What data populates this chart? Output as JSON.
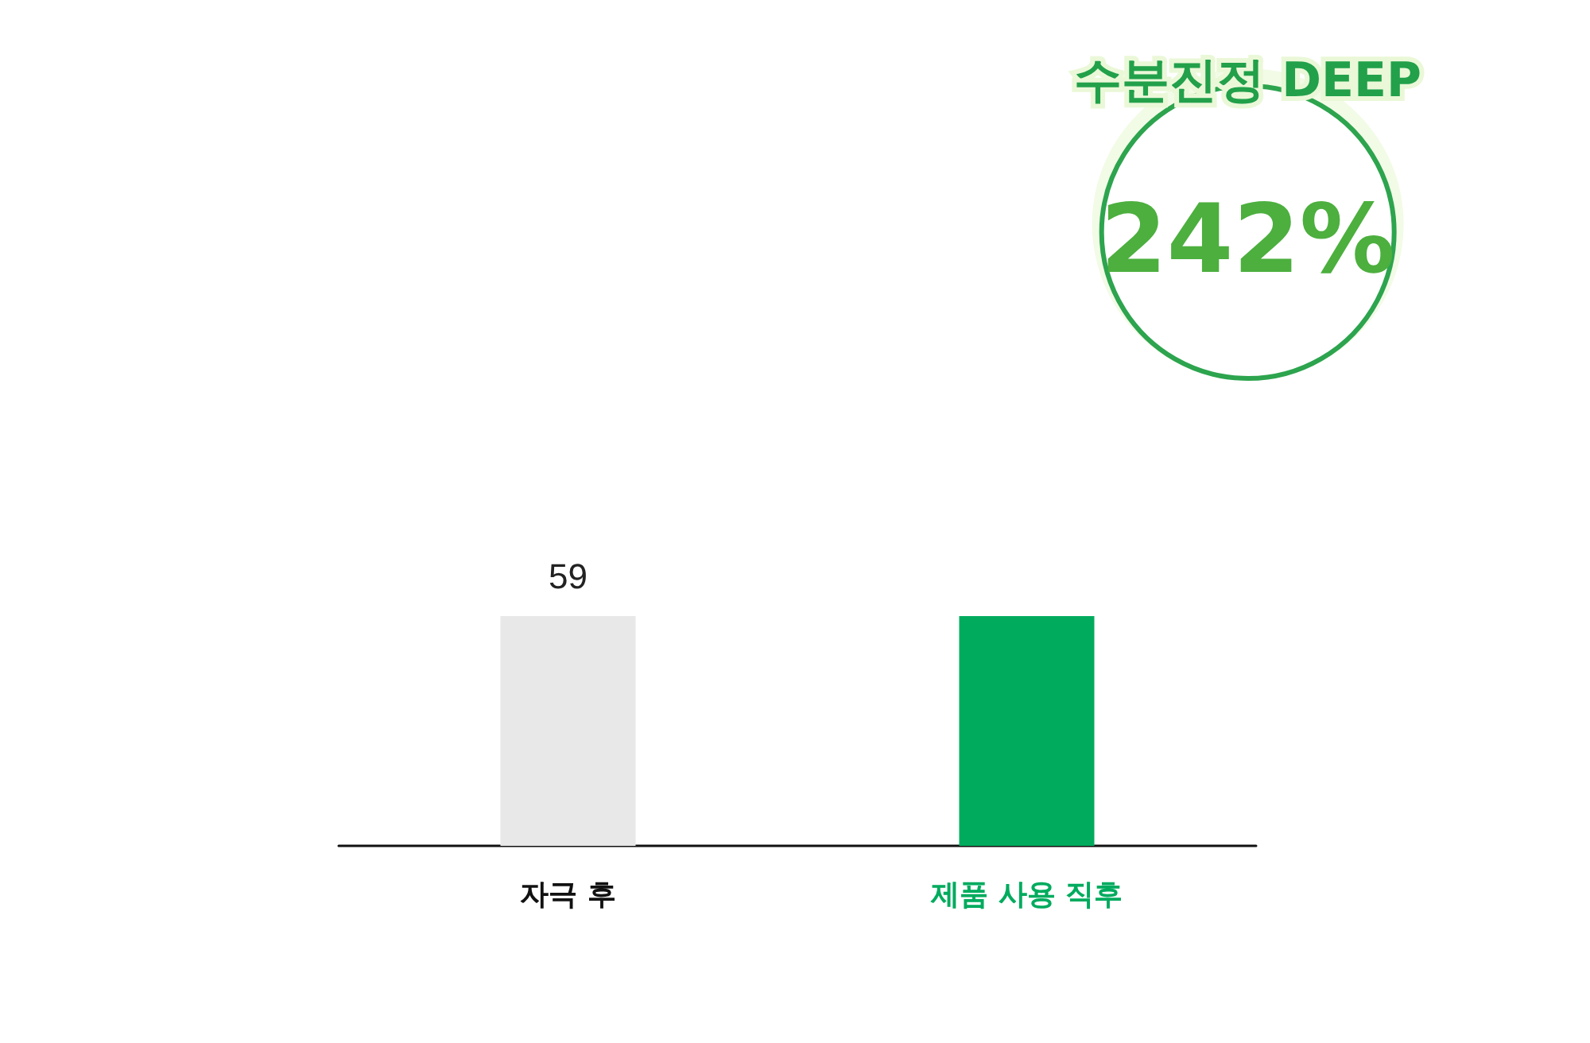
{
  "chart_data": {
    "type": "bar",
    "categories": [
      "자극 후",
      "제품 사용 직후"
    ],
    "values": [
      59,
      59
    ],
    "colors": [
      "#e8e8e8",
      "#00ab5e"
    ],
    "value_labels": [
      "59",
      null
    ],
    "annotations": [
      "수분진정 DEEP",
      "242%"
    ]
  }
}
